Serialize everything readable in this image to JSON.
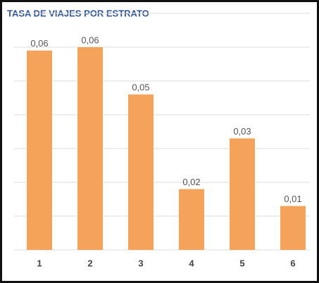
{
  "chart_data": {
    "type": "bar",
    "title": "TASA DE VIAJES POR ESTRATO",
    "categories": [
      "1",
      "2",
      "3",
      "4",
      "5",
      "6"
    ],
    "values": [
      0.059,
      0.06,
      0.046,
      0.018,
      0.033,
      0.013
    ],
    "value_labels": [
      "0,06",
      "0,06",
      "0,05",
      "0,02",
      "0,03",
      "0,01"
    ],
    "color": "#f5a35a",
    "ylim": [
      0,
      0.07
    ],
    "yticks": [
      0,
      0.01,
      0.02,
      0.03,
      0.04,
      0.05,
      0.06,
      0.07
    ],
    "grid": true
  }
}
